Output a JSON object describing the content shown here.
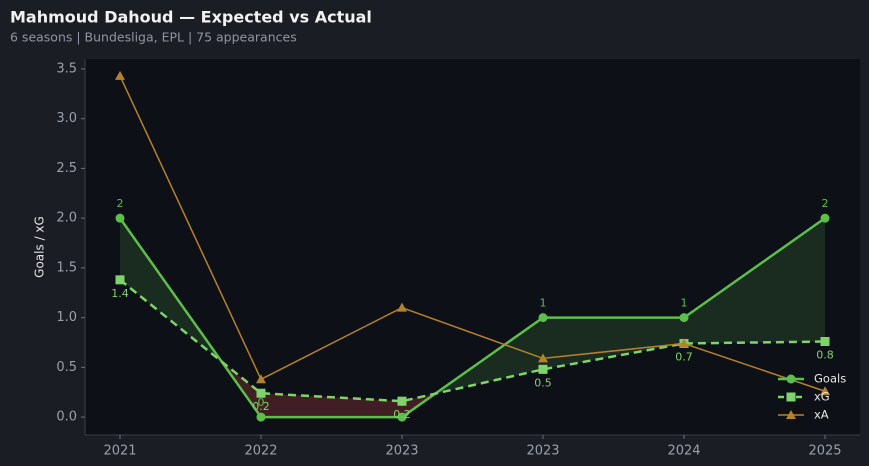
{
  "chart_data": {
    "type": "line",
    "title": "Mahmoud Dahoud — Expected vs Actual",
    "subtitle": "6 seasons | Bundesliga, EPL | 75 appearances",
    "y_label": "Goals / xG",
    "categories": [
      "2021",
      "2022",
      "2023",
      "2023",
      "2024",
      "2025"
    ],
    "series": [
      {
        "name": "Goals",
        "color": "#5cbf4a",
        "values": [
          2,
          0,
          0,
          1,
          1,
          2
        ],
        "marker": "circle",
        "dash": false,
        "labels": true
      },
      {
        "name": "xG",
        "color": "#7ed36a",
        "values": [
          1.38,
          0.24,
          0.16,
          0.48,
          0.74,
          0.76
        ],
        "value_labels": [
          "1.4",
          "0.2",
          "0.2",
          "0.5",
          "0.7",
          "0.8"
        ],
        "marker": "square",
        "dash": true,
        "labels": true
      },
      {
        "name": "xA",
        "color": "#b5822a",
        "values": [
          3.43,
          0.38,
          1.1,
          0.59,
          0.74,
          0.26
        ],
        "marker": "triangle",
        "dash": false,
        "labels": false
      }
    ],
    "ylim": [
      -0.18,
      3.6
    ],
    "yticks": [
      {
        "value": 0,
        "label": "0.0"
      },
      {
        "value": 0.5,
        "label": "0.5"
      },
      {
        "value": 1,
        "label": "1.0"
      },
      {
        "value": 1.5,
        "label": "1.5"
      },
      {
        "value": 2,
        "label": "2.0"
      },
      {
        "value": 2.5,
        "label": "2.5"
      },
      {
        "value": 3,
        "label": "3.0"
      },
      {
        "value": 3.5,
        "label": "3.5"
      }
    ],
    "legend": "lower right"
  }
}
